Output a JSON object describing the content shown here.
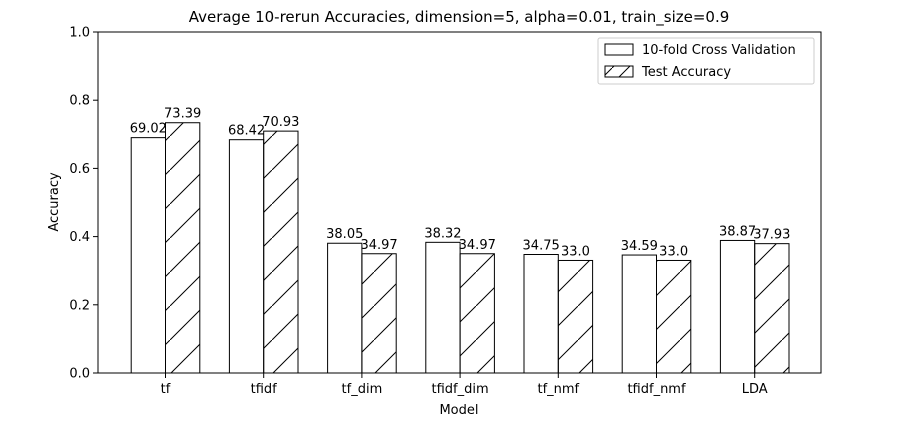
{
  "chart_data": {
    "type": "bar",
    "title": "Average 10-rerun Accuracies, dimension=5, alpha=0.01, train_size=0.9",
    "xlabel": "Model",
    "ylabel": "Accuracy",
    "ylim": [
      0,
      1.0
    ],
    "yticks": [
      "0.0",
      "0.2",
      "0.4",
      "0.6",
      "0.8",
      "1.0"
    ],
    "grid": false,
    "legend_position": "top-right",
    "categories": [
      "tf",
      "tfidf",
      "tf_dim",
      "tfidf_dim",
      "tf_nmf",
      "tfidf_nmf",
      "LDA"
    ],
    "series": [
      {
        "name": "10-fold Cross Validation",
        "hatch": "none",
        "values": [
          0.6902,
          0.6842,
          0.3805,
          0.3832,
          0.3475,
          0.3459,
          0.3887
        ],
        "labels": [
          "69.02",
          "68.42",
          "38.05",
          "38.32",
          "34.75",
          "34.59",
          "38.87"
        ]
      },
      {
        "name": "Test Accuracy",
        "hatch": "diagonal",
        "values": [
          0.7339,
          0.7093,
          0.3497,
          0.3497,
          0.33,
          0.33,
          0.3793
        ],
        "labels": [
          "73.39",
          "70.93",
          "34.97",
          "34.97",
          "33.0",
          "33.0",
          "37.93"
        ]
      }
    ],
    "colors": {
      "bar_fill": "#ffffff",
      "bar_edge": "#000000"
    }
  }
}
